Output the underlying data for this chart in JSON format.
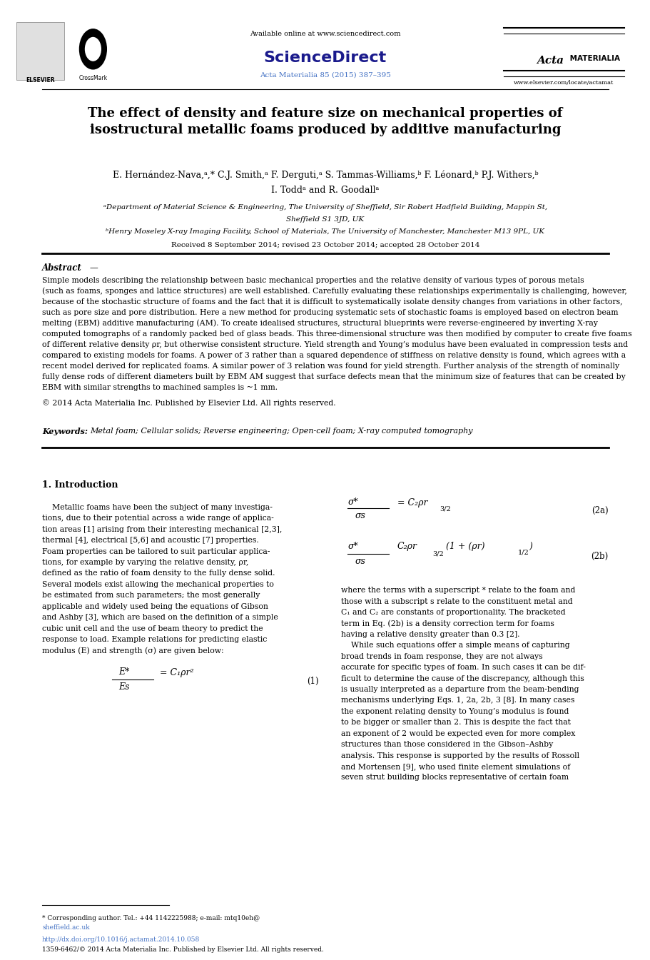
{
  "background_color": "#ffffff",
  "page_width": 9.92,
  "page_height": 13.23,
  "header": {
    "available_online": "Available online at www.sciencedirect.com",
    "sciencedirect": "ScienceDirect",
    "journal": "Acta Materialia 85 (2015) 387–395",
    "journal_color": "#4472c4",
    "website": "www.elsevier.com/locate/actamat",
    "sciencedirect_color": "#000080"
  },
  "title": "The effect of density and feature size on mechanical properties of\nisostructural metallic foams produced by additive manufacturing",
  "authors": "E. Hernández-Nava,ᵃ,* C.J. Smith,ᵃ F. Derguti,ᵃ S. Tammas-Williams,ᵇ F. Léonard,ᵇ P.J. Withers,ᵇ",
  "authors2": "I. Toddᵃ and R. Goodallᵃ",
  "affiliation_a": "ᵃDepartment of Material Science & Engineering, The University of Sheffield, Sir Robert Hadfield Building, Mappin St,",
  "affiliation_a2": "Sheffield S1 3JD, UK",
  "affiliation_b": "ᵇHenry Moseley X-ray Imaging Facility, School of Materials, The University of Manchester, Manchester M13 9PL, UK",
  "received": "Received 8 September 2014; revised 23 October 2014; accepted 28 October 2014",
  "abstract_title": "Abstract",
  "abstract_text": "Simple models describing the relationship between basic mechanical properties and the relative density of various types of porous metals (such as foams, sponges and lattice structures) are well established. Carefully evaluating these relationships experimentally is challenging, however, because of the stochastic structure of foams and the fact that it is difficult to systematically isolate density changes from variations in other factors, such as pore size and pore distribution. Here a new method for producing systematic sets of stochastic foams is employed based on electron beam melting (EBM) additive manufacturing (AM). To create idealised structures, structural blueprints were reverse-engineered by inverting X-ray computed tomographs of a randomly packed bed of glass beads. This three-dimensional structure was then modified by computer to create five foams of different relative density ρr, but otherwise consistent structure. Yield strength and Young’s modulus have been evaluated in compression tests and compared to existing models for foams. A power of 3 rather than a squared dependence of stiffness on relative density is found, which agrees with a recent model derived for replicated foams. A similar power of 3 relation was found for yield strength. Further analysis of the strength of nominally fully dense rods of different diameters built by EBM AM suggest that surface defects mean that the minimum size of features that can be created by EBM with similar strengths to machined samples is ~1 mm.",
  "copyright": "© 2014 Acta Materialia Inc. Published by Elsevier Ltd. All rights reserved.",
  "keywords_label": "Keywords:",
  "keywords": "Metal foam; Cellular solids; Reverse engineering; Open-cell foam; X-ray computed tomography",
  "section1_title": "1. Introduction",
  "intro_text1": "    Metallic foams have been the subject of many investigations, due to their potential across a wide range of application areas [1] arising from their interesting mechanical [2,3], thermal [4], electrical [5,6] and acoustic [7] properties. Foam properties can be tailored to suit particular applications, for example by varying the relative density, ρr, defined as the ratio of foam density to the fully dense solid. Several models exist allowing the mechanical properties to be estimated from such parameters; the most generally applicable and widely used being the equations of Gibson and Ashby [3], which are based on the definition of a simple cubic unit cell and the use of beam theory to predict the response to load. Example relations for predicting elastic modulus (E) and strength (σ) are given below:",
  "eq1": "E*/Es = C₁ρr²",
  "eq1_label": "(1)",
  "eq2a": "σ*/σs = C₂ρr^(3/2)",
  "eq2a_label": "(2a)",
  "eq2b": "σ*/σs = C₂ρr^(3/2)(1+(ρr)^(1/2))",
  "eq2b_label": "(2b)",
  "right_col_text": "where the terms with a superscript * relate to the foam and those with a subscript s relate to the constituent metal and C₁ and C₂ are constants of proportionality. The bracketed term in Eq. (2b) is a density correction term for foams having a relative density greater than 0.3 [2].\n    While such equations offer a simple means of capturing broad trends in foam response, they are not always accurate for specific types of foam. In such cases it can be difficult to determine the cause of the discrepancy, although this is usually interpreted as a departure from the beam-bending mechanisms underlying Eqs. 1, 2a, 2b, 3 [8]. In many cases the exponent relating density to Young’s modulus is found to be bigger or smaller than 2. This is despite the fact that an exponent of 2 would be expected even for more complex structures than those considered in the Gibson–Ashby analysis. This response is supported by the results of Rossoll and Mortensen [9], who used finite element simulations of seven strut building blocks representative of certain foam",
  "footnote_star": "* Corresponding author. Tel.: +44 1142225988; e-mail: mtq10eh@sheffield.ac.uk",
  "footnote_doi": "http://dx.doi.org/10.1016/j.actamat.2014.10.058",
  "footnote_issn": "1359-6462/© 2014 Acta Materialia Inc. Published by Elsevier Ltd. All rights reserved."
}
